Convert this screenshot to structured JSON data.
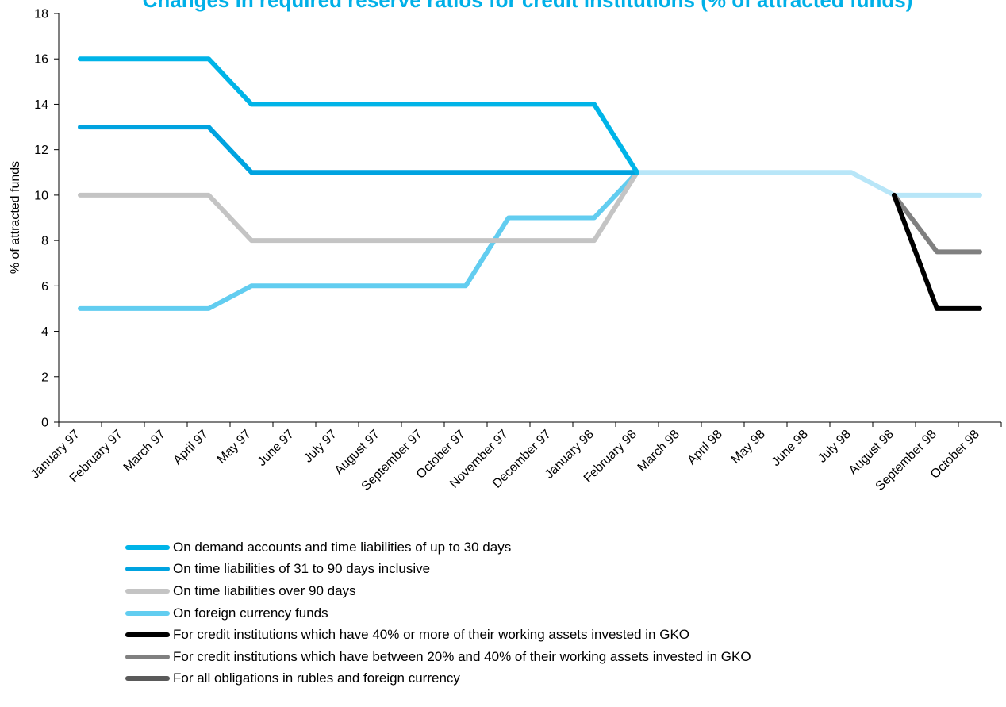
{
  "chart_data": {
    "type": "line",
    "title": "Changes in required reserve ratios for credit institutions (% of attracted funds)",
    "ylabel": "% of attracted funds",
    "xlabel": "",
    "ylim": [
      0,
      18
    ],
    "yticks": [
      0,
      2,
      4,
      6,
      8,
      10,
      12,
      14,
      16,
      18
    ],
    "grid": false,
    "legend_position": "bottom",
    "categories": [
      "January 97",
      "February 97",
      "March 97",
      "April 97",
      "May 97",
      "June 97",
      "July 97",
      "August 97",
      "September 97",
      "October 97",
      "November 97",
      "December 97",
      "January 98",
      "February 98",
      "March 98",
      "April 98",
      "May 98",
      "June 98",
      "July 98",
      "August 98",
      "September 98",
      "October 98"
    ],
    "series": [
      {
        "name": "On demand accounts and time liabilities of up to 30 days",
        "color": "#00b4e8",
        "values": [
          16,
          16,
          16,
          16,
          14,
          14,
          14,
          14,
          14,
          14,
          14,
          14,
          14,
          11,
          null,
          null,
          null,
          null,
          null,
          null,
          null,
          null
        ]
      },
      {
        "name": "On time liabilities of 31 to 90 days inclusive",
        "color": "#00a3e0",
        "values": [
          13,
          13,
          13,
          13,
          11,
          11,
          11,
          11,
          11,
          11,
          11,
          11,
          11,
          11,
          null,
          null,
          null,
          null,
          null,
          null,
          null,
          null
        ]
      },
      {
        "name": "On time liabilities over 90 days",
        "color": "#c4c4c4",
        "values": [
          10,
          10,
          10,
          10,
          8,
          8,
          8,
          8,
          8,
          8,
          8,
          8,
          8,
          11,
          null,
          null,
          null,
          null,
          null,
          null,
          null,
          null
        ]
      },
      {
        "name": "On foreign currency funds",
        "color": "#62cdf0",
        "values": [
          5,
          5,
          5,
          5,
          6,
          6,
          6,
          6,
          6,
          6,
          9,
          9,
          9,
          11,
          null,
          null,
          null,
          null,
          null,
          null,
          null,
          null
        ]
      },
      {
        "name": "For credit institutions which have 40% or more of their working assets invested in GKO",
        "color": "#000000",
        "values": [
          null,
          null,
          null,
          null,
          null,
          null,
          null,
          null,
          null,
          null,
          null,
          null,
          null,
          null,
          null,
          null,
          null,
          null,
          null,
          10,
          5,
          5
        ]
      },
      {
        "name": "For credit institutions which have between 20% and 40% of their working assets invested in GKO",
        "color": "#808080",
        "values": [
          null,
          null,
          null,
          null,
          null,
          null,
          null,
          null,
          null,
          null,
          null,
          null,
          null,
          null,
          null,
          null,
          null,
          null,
          null,
          10,
          7.5,
          7.5
        ]
      },
      {
        "name": "For all obligations in rubles and foreign currency",
        "color": "#5a5a5a",
        "values": [
          null,
          null,
          null,
          null,
          null,
          null,
          null,
          null,
          null,
          null,
          null,
          null,
          null,
          null,
          null,
          null,
          null,
          null,
          null,
          null,
          null,
          null
        ]
      }
    ],
    "unlabeled_series": [
      {
        "color": "#b8e6f8",
        "values": [
          null,
          null,
          null,
          null,
          null,
          null,
          null,
          null,
          null,
          null,
          null,
          null,
          null,
          11,
          11,
          11,
          11,
          11,
          11,
          10,
          10,
          10
        ]
      }
    ]
  }
}
